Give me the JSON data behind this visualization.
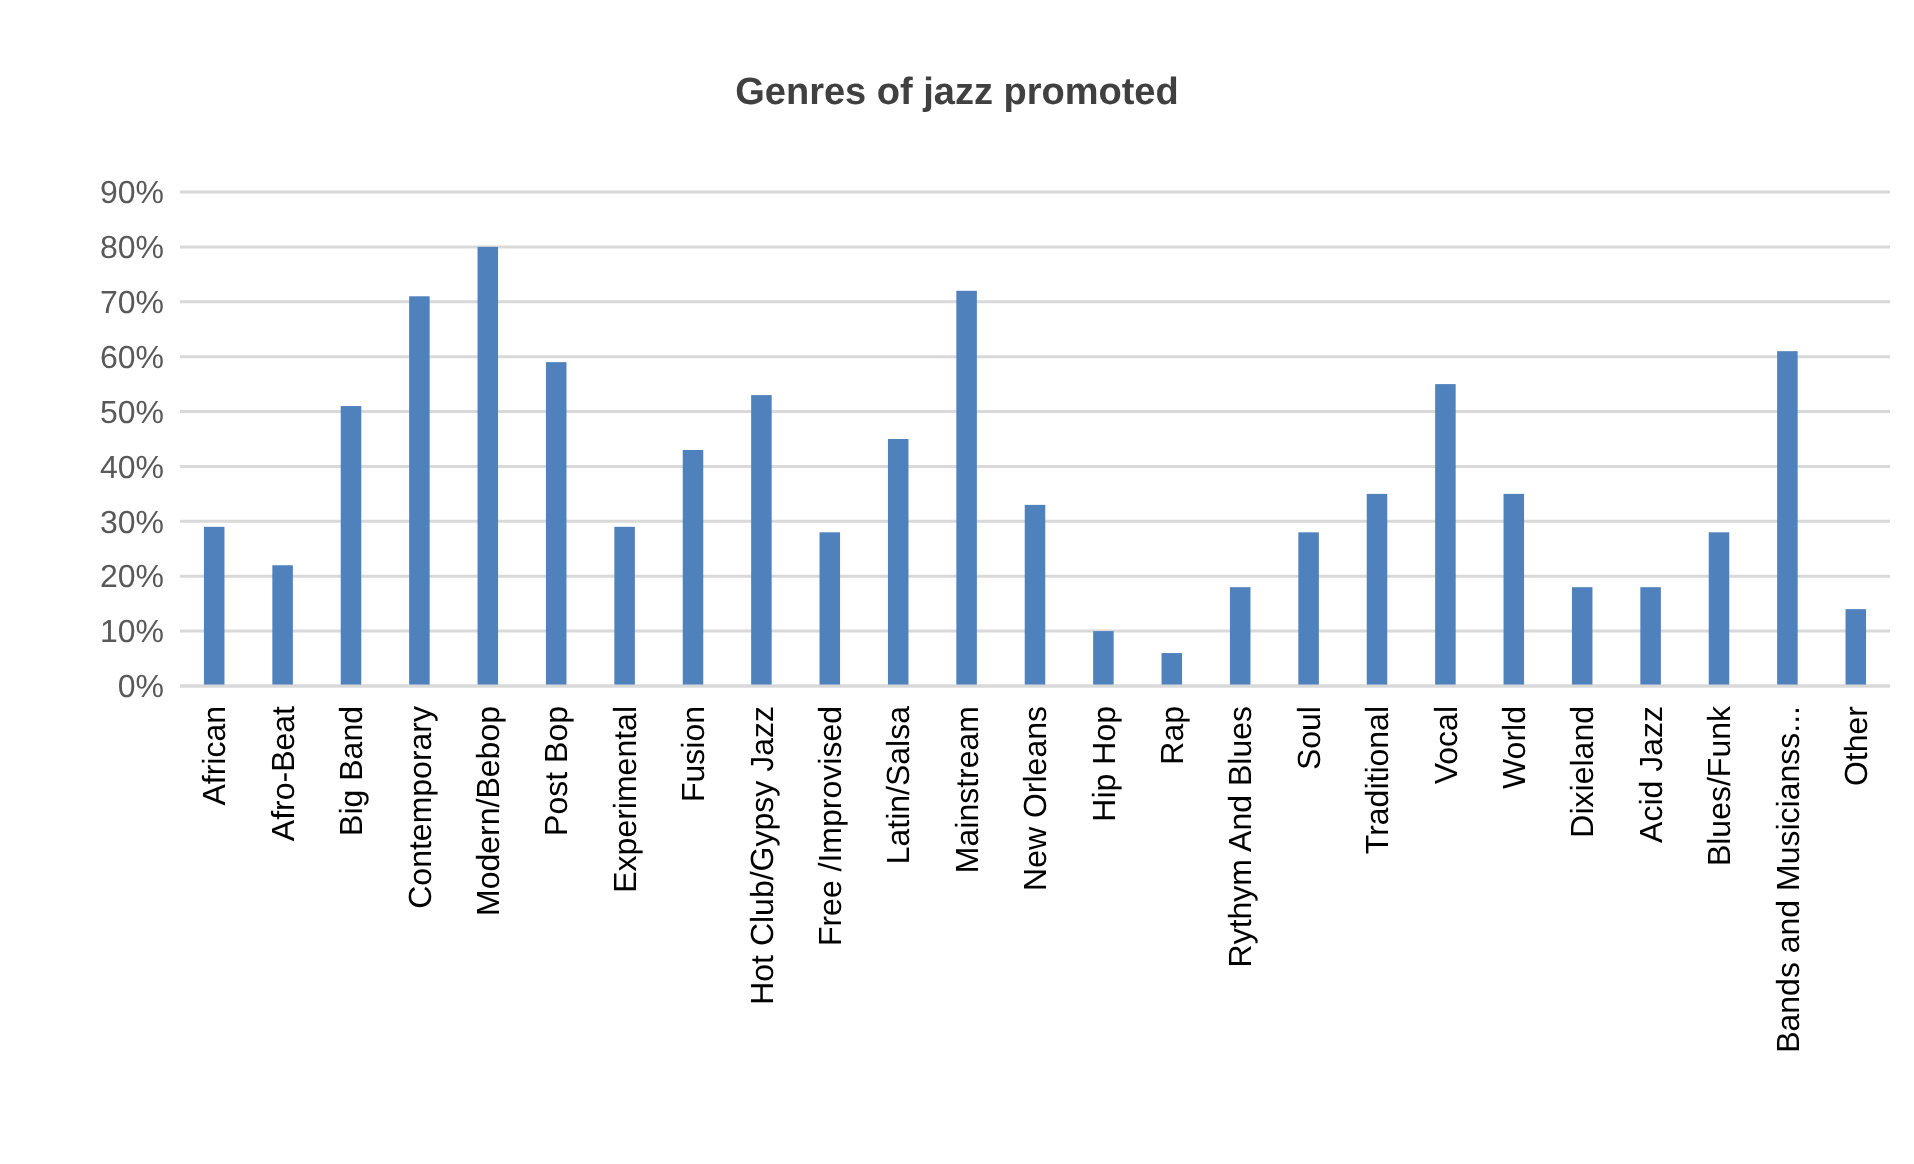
{
  "chart_data": {
    "type": "bar",
    "title": "Genres of jazz promoted",
    "categories": [
      "African",
      "Afro-Beat",
      "Big Band",
      "Contemporary",
      "Modern/Bebop",
      "Post Bop",
      "Experimental",
      "Fusion",
      "Hot Club/Gypsy Jazz",
      "Free /Improvised",
      "Latin/Salsa",
      "Mainstream",
      "New Orleans",
      "Hip Hop",
      "Rap",
      "Rythym And Blues",
      "Soul",
      "Traditional",
      "Vocal",
      "World",
      "Dixieland",
      "Acid Jazz",
      "Blues/Funk",
      "Bands and Musicianss...",
      "Other"
    ],
    "values": [
      29,
      22,
      51,
      71,
      80,
      59,
      29,
      43,
      53,
      28,
      45,
      72,
      33,
      10,
      6,
      18,
      28,
      35,
      55,
      35,
      18,
      18,
      28,
      61,
      14
    ],
    "color": "#4f81bd",
    "ylim": [
      0,
      90
    ],
    "yticks": [
      {
        "value": 0,
        "label": "0%"
      },
      {
        "value": 10,
        "label": "10%"
      },
      {
        "value": 20,
        "label": "20%"
      },
      {
        "value": 30,
        "label": "30%"
      },
      {
        "value": 40,
        "label": "40%"
      },
      {
        "value": 50,
        "label": "50%"
      },
      {
        "value": 60,
        "label": "60%"
      },
      {
        "value": 70,
        "label": "70%"
      },
      {
        "value": 80,
        "label": "80%"
      },
      {
        "value": 90,
        "label": "90%"
      }
    ],
    "grid": "y"
  }
}
